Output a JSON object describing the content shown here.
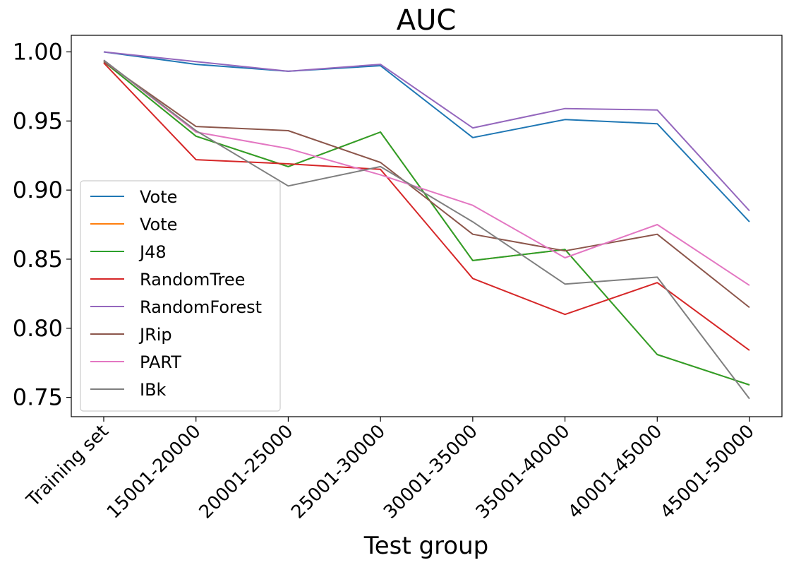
{
  "chart_data": {
    "type": "line",
    "title": "AUC",
    "xlabel": "Test group",
    "ylabel": "",
    "categories": [
      "Training set",
      "15001-20000",
      "20001-25000",
      "25001-30000",
      "30001-35000",
      "35001-40000",
      "40001-45000",
      "45001-50000"
    ],
    "ylim": [
      0.736,
      1.012
    ],
    "yticks": [
      0.75,
      0.8,
      0.85,
      0.9,
      0.95,
      1.0
    ],
    "ytick_labels": [
      "0.75",
      "0.80",
      "0.85",
      "0.90",
      "0.95",
      "1.00"
    ],
    "grid": false,
    "legend_position": "lower-left",
    "series": [
      {
        "name": "Vote",
        "color": "#1f77b4",
        "values": [
          1.0,
          0.991,
          0.986,
          0.99,
          0.938,
          0.951,
          0.948,
          0.877
        ]
      },
      {
        "name": "Vote",
        "color": "#ff7f0e",
        "values": [
          0.993,
          0.939,
          0.917,
          0.942,
          0.849,
          0.857,
          0.781,
          0.759
        ]
      },
      {
        "name": "J48",
        "color": "#2ca02c",
        "values": [
          0.993,
          0.939,
          0.917,
          0.942,
          0.849,
          0.857,
          0.781,
          0.759
        ]
      },
      {
        "name": "RandomTree",
        "color": "#d62728",
        "values": [
          0.992,
          0.922,
          0.919,
          0.915,
          0.836,
          0.81,
          0.833,
          0.784
        ]
      },
      {
        "name": "RandomForest",
        "color": "#9467bd",
        "values": [
          1.0,
          0.993,
          0.986,
          0.991,
          0.945,
          0.959,
          0.958,
          0.885
        ]
      },
      {
        "name": "JRip",
        "color": "#8c564b",
        "values": [
          0.993,
          0.946,
          0.943,
          0.92,
          0.868,
          0.856,
          0.868,
          0.815
        ]
      },
      {
        "name": "PART",
        "color": "#e377c2",
        "values": [
          0.994,
          0.942,
          0.93,
          0.911,
          0.889,
          0.851,
          0.875,
          0.831
        ]
      },
      {
        "name": "IBk",
        "color": "#7f7f7f",
        "values": [
          0.994,
          0.943,
          0.903,
          0.917,
          0.877,
          0.832,
          0.837,
          0.749
        ]
      }
    ]
  }
}
